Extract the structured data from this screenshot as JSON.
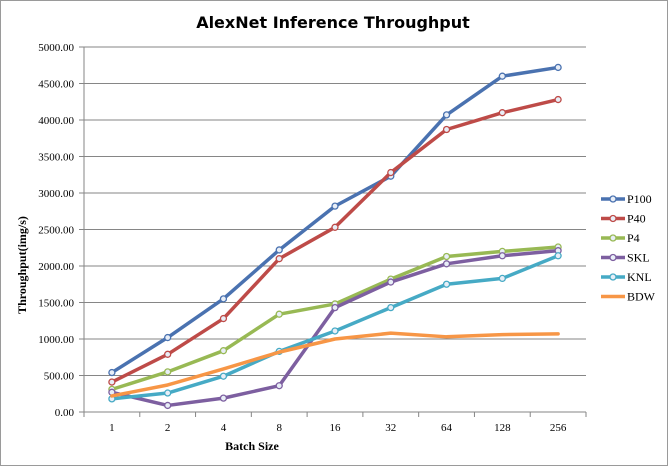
{
  "chart_data": {
    "type": "line",
    "title": "AlexNet Inference Throughput",
    "xlabel": "Batch Size",
    "ylabel": "Throughput(img/s)",
    "categories": [
      "1",
      "2",
      "4",
      "8",
      "16",
      "32",
      "64",
      "128",
      "256"
    ],
    "ylim": [
      0,
      5000
    ],
    "yticks": [
      "0.00",
      "500.00",
      "1000.00",
      "1500.00",
      "2000.00",
      "2500.00",
      "3000.00",
      "3500.00",
      "4000.00",
      "4500.00",
      "5000.00"
    ],
    "grid": true,
    "legend_position": "right",
    "series": [
      {
        "name": "P100",
        "color": "#4a72b0",
        "markers": true,
        "values": [
          540,
          1020,
          1550,
          2220,
          2820,
          3230,
          4070,
          4600,
          4720
        ]
      },
      {
        "name": "P40",
        "color": "#be4b48",
        "markers": true,
        "values": [
          410,
          790,
          1280,
          2100,
          2530,
          3280,
          3870,
          4100,
          4280
        ]
      },
      {
        "name": "P4",
        "color": "#98b954",
        "markers": true,
        "values": [
          310,
          550,
          840,
          1340,
          1480,
          1820,
          2130,
          2200,
          2260
        ]
      },
      {
        "name": "SKL",
        "color": "#7d5fa0",
        "markers": true,
        "values": [
          270,
          90,
          190,
          360,
          1430,
          1780,
          2030,
          2140,
          2210
        ]
      },
      {
        "name": "KNL",
        "color": "#46aac5",
        "markers": true,
        "values": [
          180,
          260,
          490,
          830,
          1110,
          1430,
          1750,
          1830,
          2140
        ]
      },
      {
        "name": "BDW",
        "color": "#f79646",
        "markers": false,
        "values": [
          220,
          370,
          590,
          820,
          1000,
          1080,
          1030,
          1060,
          1070
        ]
      }
    ]
  }
}
